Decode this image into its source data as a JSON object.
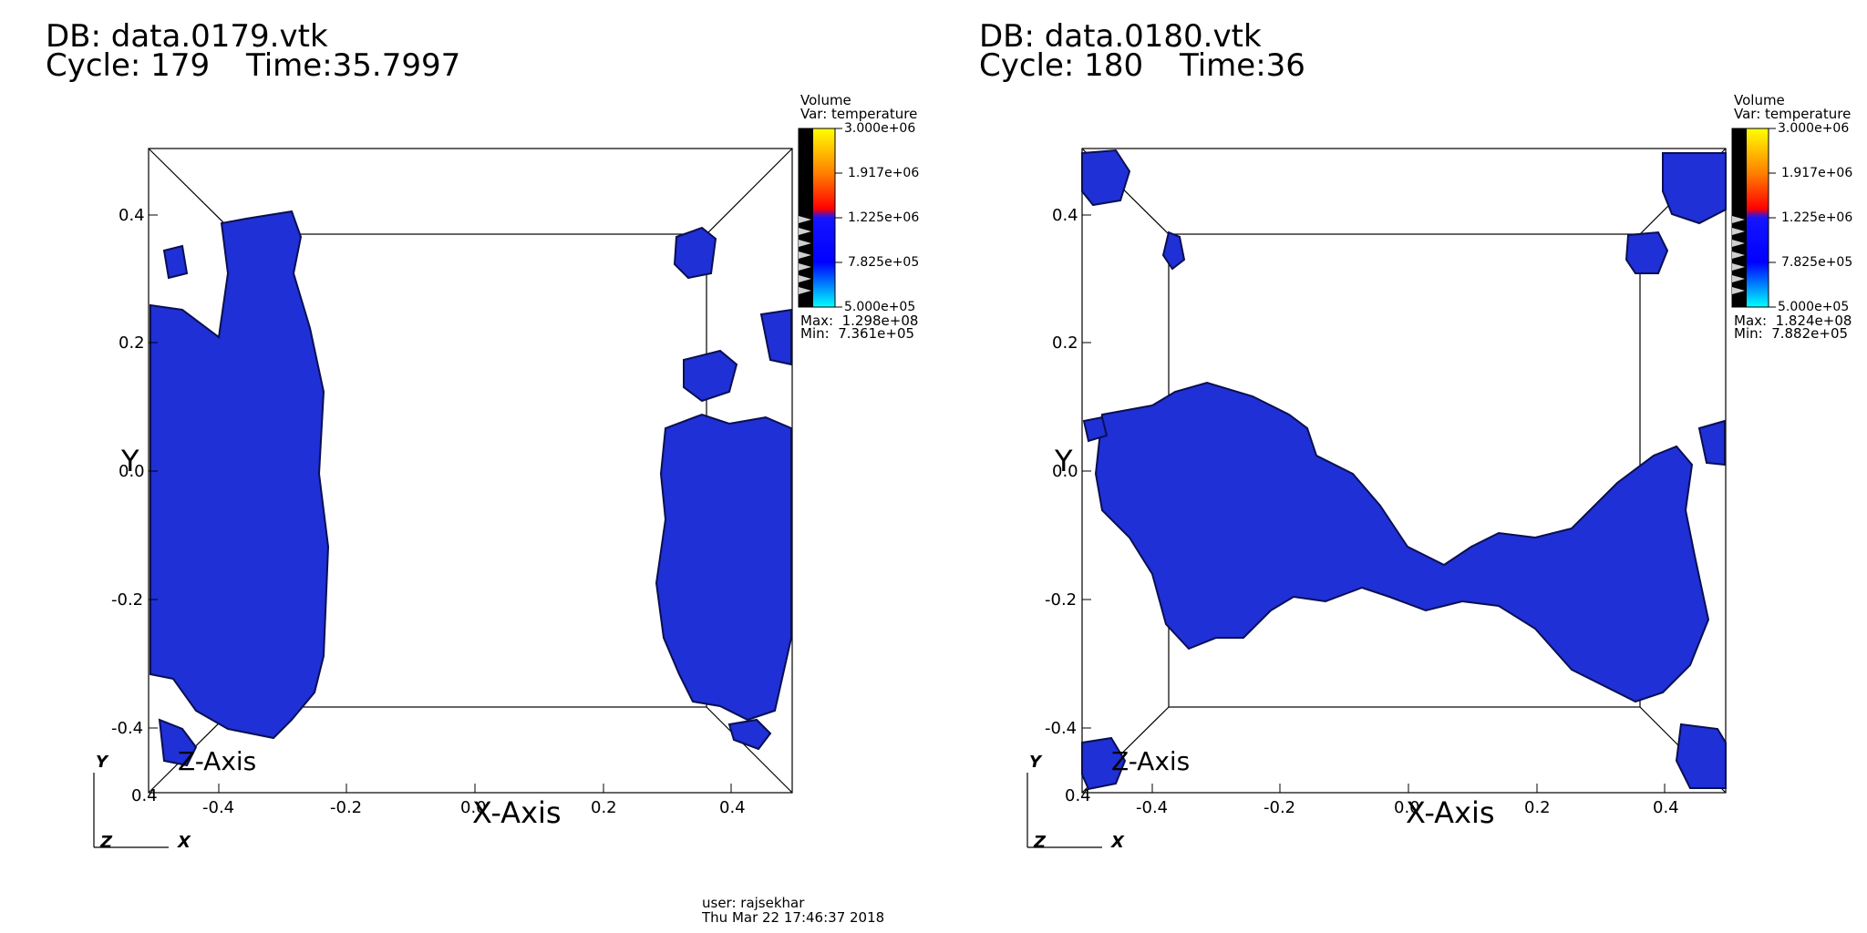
{
  "panels": [
    {
      "db": "DB: data.0179.vtk",
      "cycle": "Cycle: 179",
      "time": "Time:35.7997",
      "legend": {
        "plot": "Volume",
        "var": "Var: temperature",
        "ticks": [
          "3.000e+06",
          "1.917e+06",
          "1.225e+06",
          "7.825e+05",
          "5.000e+05"
        ],
        "max": "Max:  1.298e+08",
        "min": "Min:  7.361e+05"
      }
    },
    {
      "db": "DB: data.0180.vtk",
      "cycle": "Cycle: 180",
      "time": "Time:36",
      "legend": {
        "plot": "Volume",
        "var": "Var: temperature",
        "ticks": [
          "3.000e+06",
          "1.917e+06",
          "1.225e+06",
          "7.825e+05",
          "5.000e+05"
        ],
        "max": "Max:  1.824e+08",
        "min": "Min:  7.882e+05"
      }
    }
  ],
  "axes": {
    "x_title": "X-Axis",
    "y_title": "Y",
    "z_title": "Z-Axis",
    "x_ticks": [
      "-0.4",
      "-0.2",
      "0.0",
      "0.2",
      "0.4"
    ],
    "y_ticks": [
      "0.4",
      "0.2",
      "0.0",
      "-0.2",
      "-0.4"
    ],
    "z_corner_tick": "0.4"
  },
  "triad": {
    "y": "Y",
    "z": "Z",
    "x": "X"
  },
  "footer": {
    "user": "user: rajsekhar",
    "date": "Thu Mar 22 17:46:37 2018"
  },
  "colors": {
    "blob": "#1f30d6",
    "blob_edge": "#0a0f50",
    "legend_gradient": [
      "#ffff00",
      "#ff8000",
      "#ff0000",
      "#000000",
      "#1515ff",
      "#0000ff",
      "#00ffff"
    ]
  }
}
